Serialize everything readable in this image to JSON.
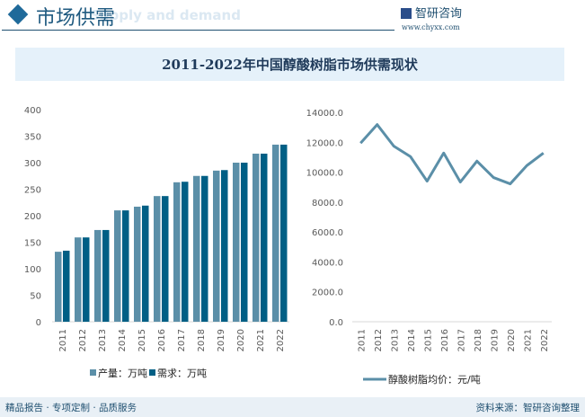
{
  "header": {
    "title": "市场供需",
    "subtitle": "Supply and demand",
    "logo_text": "智研咨询",
    "url": "www.chyxx.com"
  },
  "title": "2011-2022年中国醇酸树脂市场供需现状",
  "footer": {
    "left": "精品报告 · 专项定制 · 品质服务",
    "right": "资料来源：智研咨询整理"
  },
  "colors": {
    "production": "#5b8fa8",
    "demand": "#005f85",
    "price": "#5b8fa8"
  },
  "chart_data": [
    {
      "type": "bar",
      "categories": [
        "2011",
        "2012",
        "2013",
        "2014",
        "2015",
        "2016",
        "2017",
        "2018",
        "2019",
        "2020",
        "2021",
        "2022"
      ],
      "series": [
        {
          "name": "产量：万吨",
          "values": [
            132,
            159,
            173,
            210,
            217,
            237,
            263,
            275,
            285,
            300,
            317,
            334
          ]
        },
        {
          "name": "需求：万吨",
          "values": [
            134,
            159,
            173,
            210,
            219,
            237,
            264,
            275,
            286,
            300,
            317,
            334
          ]
        }
      ],
      "ylim": [
        0,
        400
      ],
      "yticks": [
        "0",
        "50",
        "100",
        "150",
        "200",
        "250",
        "300",
        "350",
        "400"
      ],
      "grid": false,
      "legend": "bottom"
    },
    {
      "type": "line",
      "categories": [
        "2011",
        "2012",
        "2013",
        "2014",
        "2015",
        "2016",
        "2017",
        "2018",
        "2019",
        "2020",
        "2021",
        "2022"
      ],
      "series": [
        {
          "name": "醇酸树脂均价：元/吨",
          "values": [
            11940,
            13180,
            11740,
            11040,
            9400,
            11280,
            9340,
            10740,
            9640,
            9220,
            10440,
            11280
          ]
        }
      ],
      "ylim": [
        0,
        14000
      ],
      "yticks": [
        "0.0",
        "2000.0",
        "4000.0",
        "6000.0",
        "8000.0",
        "10000.0",
        "12000.0",
        "14000.0"
      ],
      "grid": false,
      "legend": "bottom"
    }
  ]
}
